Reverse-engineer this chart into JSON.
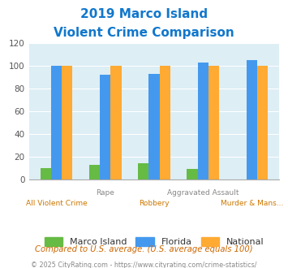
{
  "title_line1": "2019 Marco Island",
  "title_line2": "Violent Crime Comparison",
  "categories": [
    "All Violent Crime",
    "Rape",
    "Robbery",
    "Aggravated Assault",
    "Murder & Mans..."
  ],
  "series": {
    "Marco Island": [
      10,
      13,
      14,
      9,
      0
    ],
    "Florida": [
      100,
      92,
      93,
      103,
      105
    ],
    "National": [
      100,
      100,
      100,
      100,
      100
    ]
  },
  "colors": {
    "Marco Island": "#66bb44",
    "Florida": "#4499ee",
    "National": "#ffaa33"
  },
  "ylim": [
    0,
    120
  ],
  "yticks": [
    0,
    20,
    40,
    60,
    80,
    100,
    120
  ],
  "background_color": "#ddeef5",
  "title_color": "#1177cc",
  "top_xlabel_color": "#888888",
  "bottom_xlabel_color": "#cc7700",
  "footnote1": "Compared to U.S. average. (U.S. average equals 100)",
  "footnote2": "© 2025 CityRating.com - https://www.cityrating.com/crime-statistics/",
  "footnote1_color": "#cc6600",
  "footnote2_color": "#888888",
  "top_labels": [
    "",
    "Rape",
    "",
    "Aggravated Assault",
    ""
  ],
  "bottom_labels": [
    "All Violent Crime",
    "",
    "Robbery",
    "",
    "Murder & Mans..."
  ]
}
